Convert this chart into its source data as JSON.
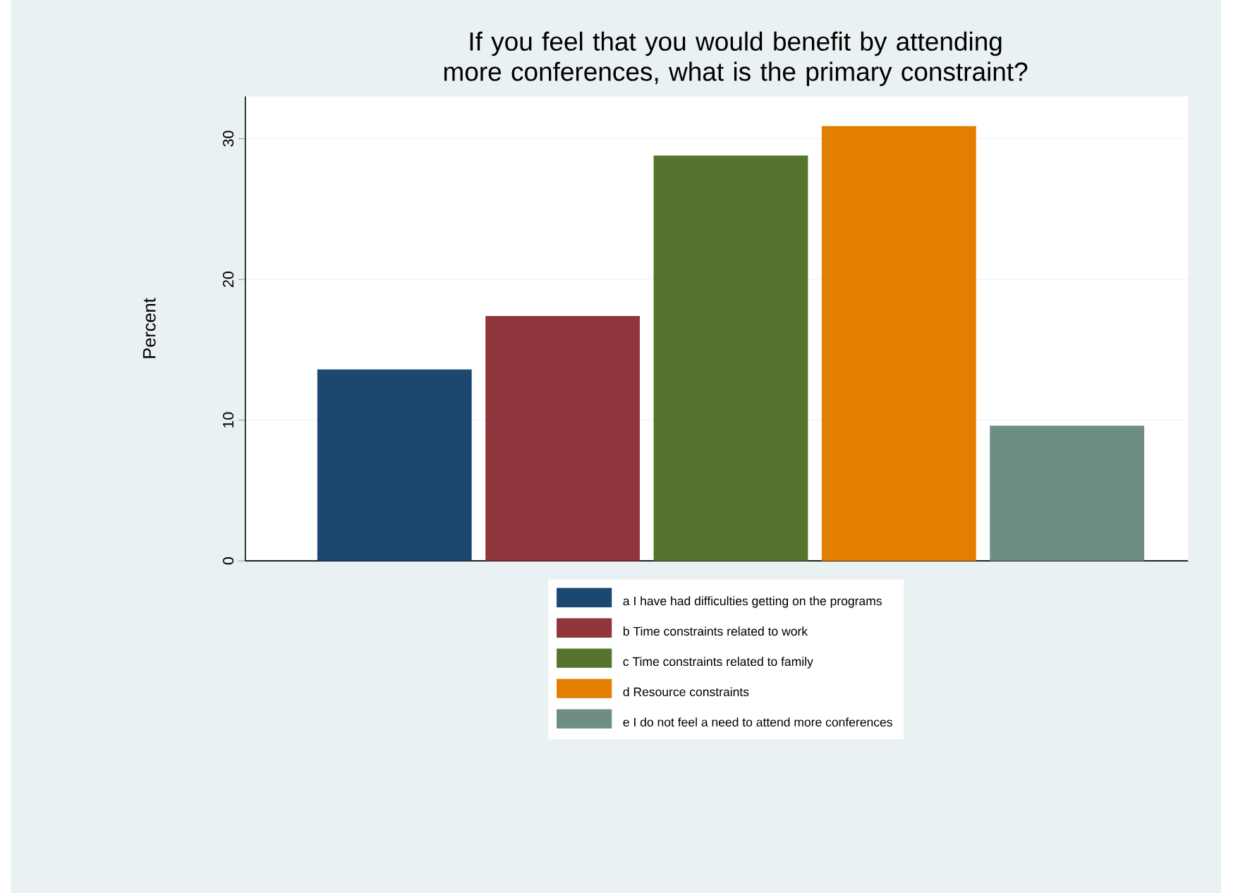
{
  "chart_data": {
    "type": "bar",
    "title": "If you feel that you would benefit by attending more conferences, what is the primary constraint?",
    "ylabel": "Percent",
    "categories": [
      null
    ],
    "series": [
      {
        "name": "a I have had difficulties getting on the programs",
        "color": "#1c4870",
        "values": [
          13.6
        ]
      },
      {
        "name": "b Time constraints related to work",
        "color": "#90353b",
        "values": [
          17.4
        ]
      },
      {
        "name": "c Time constraints related to family",
        "color": "#55752f",
        "values": [
          28.8
        ]
      },
      {
        "name": "d Resource constraints",
        "color": "#e37e00",
        "values": [
          30.9
        ]
      },
      {
        "name": "e I do not feel a need to attend more conferences",
        "color": "#6e8e84",
        "values": [
          9.6
        ]
      }
    ],
    "ylim": [
      0,
      33
    ],
    "yticks": [
      0,
      10,
      20,
      30
    ],
    "grid": "y",
    "legend": "bottom"
  }
}
